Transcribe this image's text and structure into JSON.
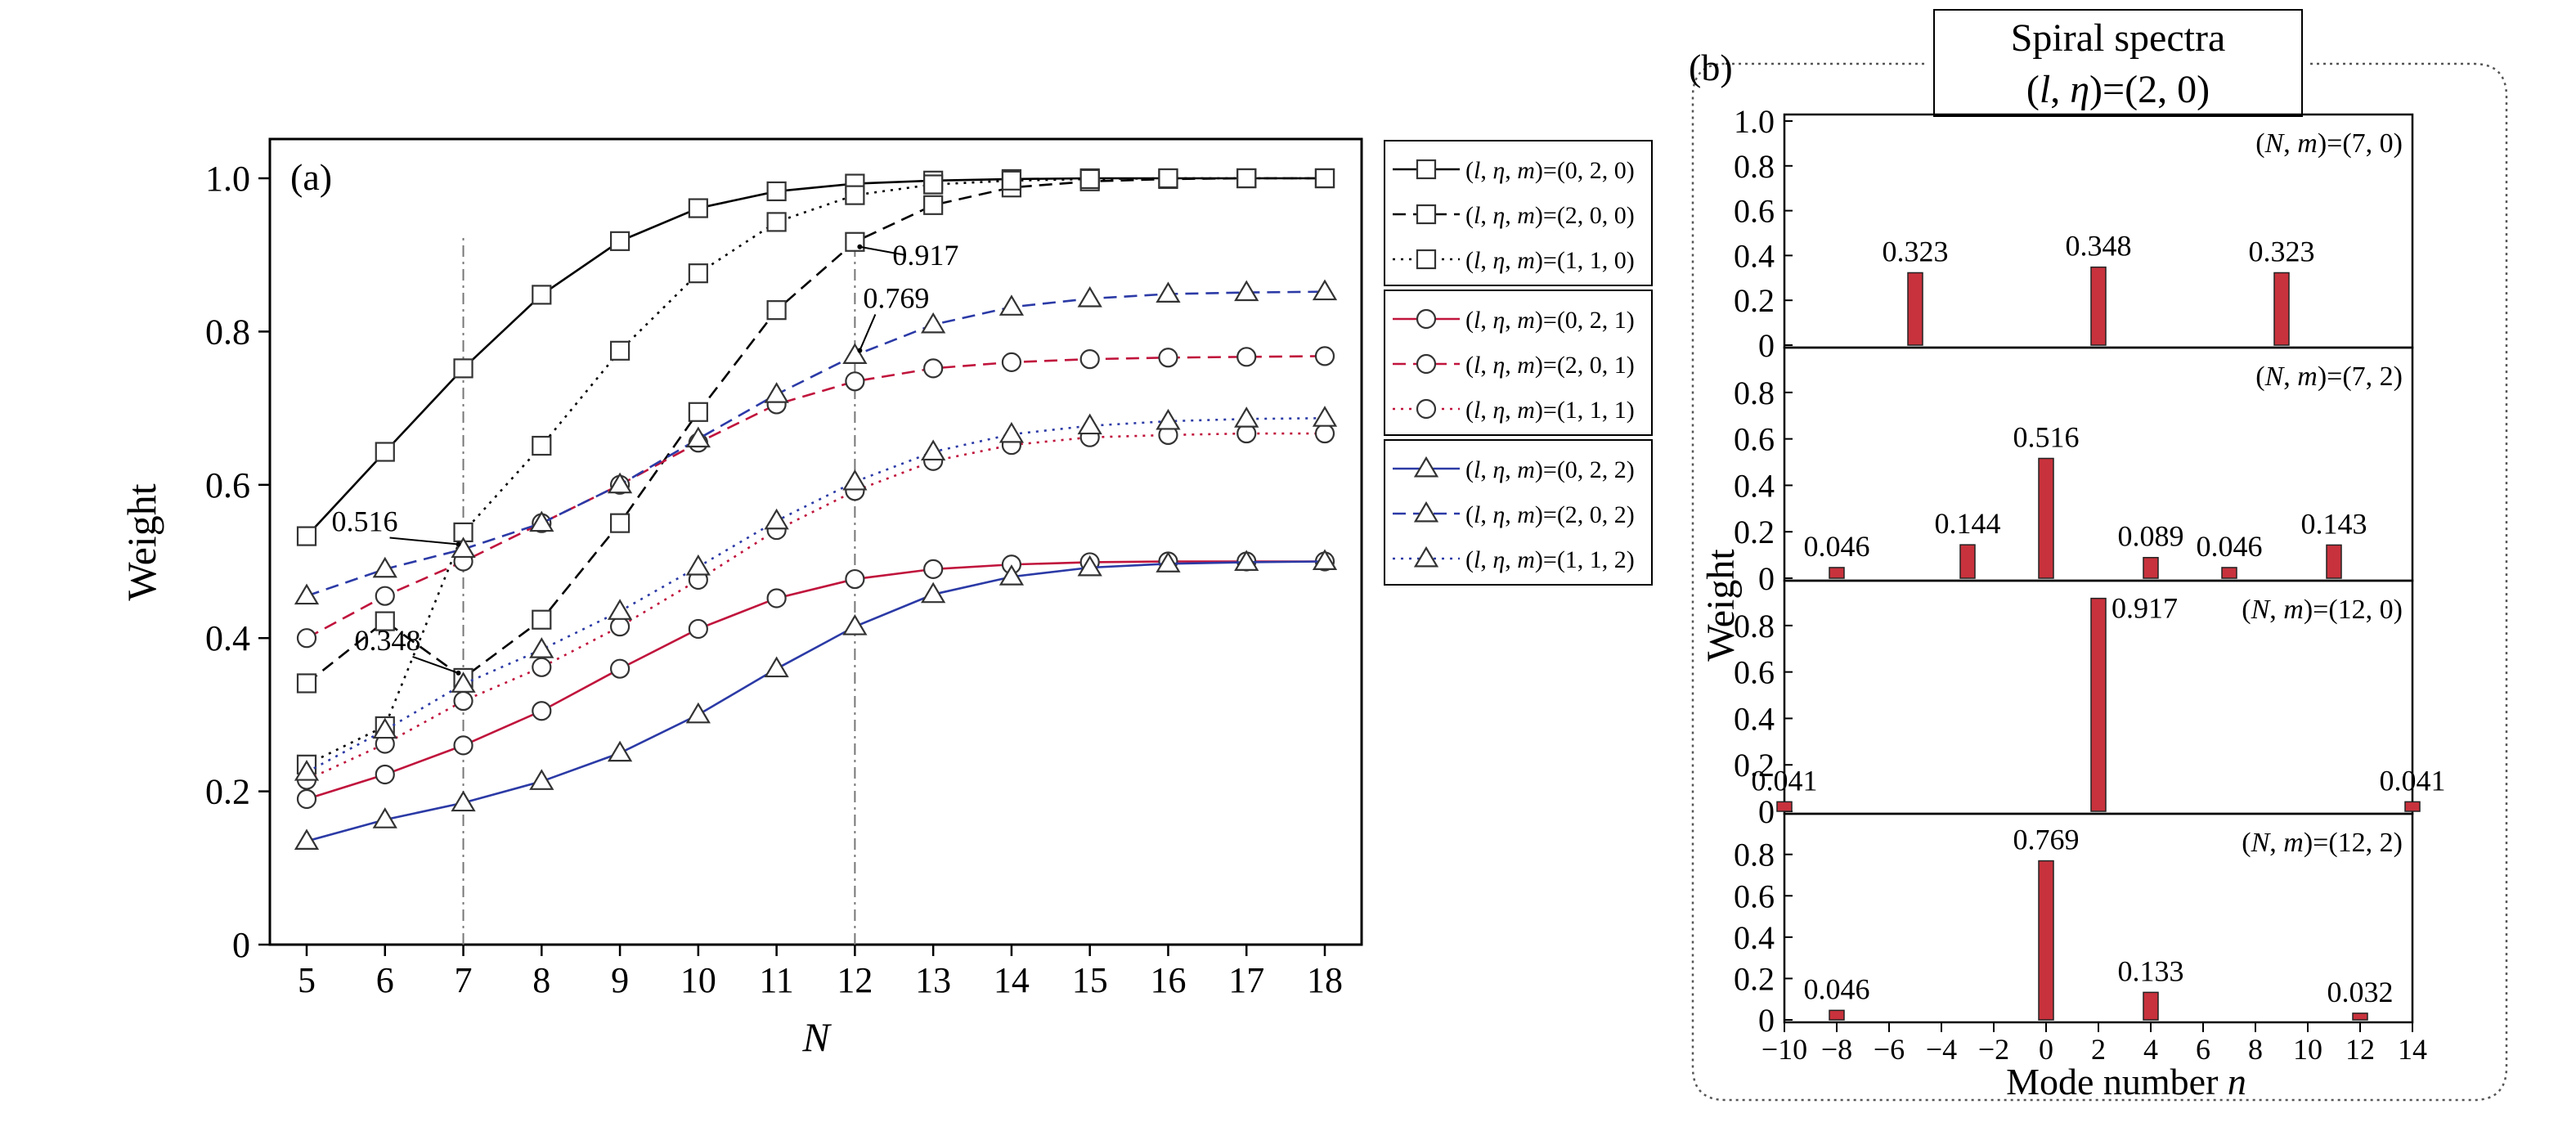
{
  "chart_data": [
    {
      "type": "line",
      "panel_label": "(a)",
      "xlabel": "N",
      "ylabel": "Weight",
      "xlim": [
        4.5,
        18.5
      ],
      "ylim": [
        0,
        1.05
      ],
      "x": [
        5,
        6,
        7,
        8,
        9,
        10,
        11,
        12,
        13,
        14,
        15,
        16,
        17,
        18
      ],
      "x_ticks": [
        "5",
        "6",
        "7",
        "8",
        "9",
        "10",
        "11",
        "12",
        "13",
        "14",
        "15",
        "16",
        "17",
        "18"
      ],
      "y_ticks": [
        {
          "v": 0,
          "label": "0"
        },
        {
          "v": 0.2,
          "label": "0.2"
        },
        {
          "v": 0.4,
          "label": "0.4"
        },
        {
          "v": 0.6,
          "label": "0.6"
        },
        {
          "v": 0.8,
          "label": "0.8"
        },
        {
          "v": 1.0,
          "label": "1.0"
        }
      ],
      "grid": false,
      "legend_position": "right",
      "series": [
        {
          "label_pre": "(",
          "label_l": "l",
          "label_eta": "η",
          "label_m": "m",
          "label_post": ")=(0, 2, 0)",
          "marker": "square",
          "dash": "solid",
          "color": "#000000",
          "values": [
            0.533,
            0.643,
            0.752,
            0.848,
            0.918,
            0.961,
            0.983,
            0.993,
            0.997,
            0.999,
            1.0,
            1.0,
            1.0,
            1.0
          ]
        },
        {
          "label_pre": "(",
          "label_l": "l",
          "label_eta": "η",
          "label_m": "m",
          "label_post": ")=(2, 0, 0)",
          "marker": "square",
          "dash": "dashed",
          "color": "#000000",
          "values": [
            0.341,
            0.422,
            0.348,
            0.424,
            0.55,
            0.695,
            0.828,
            0.917,
            0.965,
            0.988,
            0.996,
            0.999,
            1.0,
            1.0
          ]
        },
        {
          "label_pre": "(",
          "label_l": "l",
          "label_eta": "η",
          "label_m": "m",
          "label_post": ")=(1, 1, 0)",
          "marker": "square",
          "dash": "dotted",
          "color": "#000000",
          "values": [
            0.235,
            0.285,
            0.538,
            0.651,
            0.775,
            0.876,
            0.943,
            0.978,
            0.992,
            0.997,
            0.999,
            1.0,
            1.0,
            1.0
          ]
        },
        {
          "label_pre": "(",
          "label_l": "l",
          "label_eta": "η",
          "label_m": "m",
          "label_post": ")=(0, 2, 1)",
          "marker": "circle",
          "dash": "solid",
          "color": "#c0143c",
          "values": [
            0.19,
            0.222,
            0.26,
            0.305,
            0.36,
            0.412,
            0.452,
            0.477,
            0.49,
            0.496,
            0.499,
            0.5,
            0.5,
            0.5
          ]
        },
        {
          "label_pre": "(",
          "label_l": "l",
          "label_eta": "η",
          "label_m": "m",
          "label_post": ")=(2, 0, 1)",
          "marker": "circle",
          "dash": "dashed",
          "color": "#c0143c",
          "values": [
            0.4,
            0.455,
            0.5,
            0.55,
            0.6,
            0.655,
            0.705,
            0.735,
            0.752,
            0.76,
            0.764,
            0.766,
            0.767,
            0.768
          ]
        },
        {
          "label_pre": "(",
          "label_l": "l",
          "label_eta": "η",
          "label_m": "m",
          "label_post": ")=(1, 1, 1)",
          "marker": "circle",
          "dash": "dotted",
          "color": "#c0143c",
          "values": [
            0.215,
            0.262,
            0.318,
            0.362,
            0.415,
            0.476,
            0.541,
            0.592,
            0.631,
            0.652,
            0.662,
            0.665,
            0.667,
            0.667
          ]
        },
        {
          "label_pre": "(",
          "label_l": "l",
          "label_eta": "η",
          "label_m": "m",
          "label_post": ")=(0, 2, 2)",
          "marker": "triangle",
          "dash": "solid",
          "color": "#2b3aa6",
          "values": [
            0.135,
            0.163,
            0.185,
            0.213,
            0.25,
            0.3,
            0.36,
            0.415,
            0.457,
            0.48,
            0.492,
            0.497,
            0.499,
            0.5
          ]
        },
        {
          "label_pre": "(",
          "label_l": "l",
          "label_eta": "η",
          "label_m": "m",
          "label_post": ")=(2, 0, 2)",
          "marker": "triangle",
          "dash": "dashed",
          "color": "#2b3aa6",
          "values": [
            0.455,
            0.49,
            0.516,
            0.55,
            0.6,
            0.66,
            0.718,
            0.769,
            0.809,
            0.832,
            0.843,
            0.849,
            0.851,
            0.852
          ]
        },
        {
          "label_pre": "(",
          "label_l": "l",
          "label_eta": "η",
          "label_m": "m",
          "label_post": ")=(1, 1, 2)",
          "marker": "triangle",
          "dash": "dotted",
          "color": "#2b3aa6",
          "values": [
            0.225,
            0.28,
            0.34,
            0.385,
            0.435,
            0.493,
            0.553,
            0.604,
            0.643,
            0.666,
            0.677,
            0.683,
            0.686,
            0.687
          ]
        }
      ],
      "annotations": [
        {
          "text": "0.516",
          "x": 7,
          "y": 0.516
        },
        {
          "text": "0.348",
          "x": 7,
          "y": 0.348
        },
        {
          "text": "0.917",
          "x": 12,
          "y": 0.917
        },
        {
          "text": "0.769",
          "x": 12,
          "y": 0.769
        }
      ],
      "reference_lines_x": [
        7,
        12
      ]
    },
    {
      "type": "bar",
      "panel_label": "(b)",
      "title_line1": "Spiral spectra",
      "title_line2_pre": "(",
      "title_line2_l": "l",
      "title_line2_eta": "η",
      "title_line2_post": ")=(2, 0)",
      "xlabel_pre": "Mode number ",
      "xlabel_var": "n",
      "ylabel": "Weight",
      "xlim": [
        -10,
        14
      ],
      "ylim": [
        0,
        1.0
      ],
      "bar_color": "#c8323c",
      "x_ticks": [
        "−10",
        "−8",
        "−6",
        "−4",
        "−2",
        "0",
        "2",
        "4",
        "6",
        "8",
        "10",
        "12",
        "14"
      ],
      "y_ticks_top": [
        {
          "v": 0,
          "label": "0"
        },
        {
          "v": 0.2,
          "label": "0.2"
        },
        {
          "v": 0.4,
          "label": "0.4"
        },
        {
          "v": 0.6,
          "label": "0.6"
        },
        {
          "v": 0.8,
          "label": "0.8"
        },
        {
          "v": 1.0,
          "label": "1.0"
        }
      ],
      "y_ticks_other": [
        {
          "v": 0,
          "label": "0"
        },
        {
          "v": 0.2,
          "label": "0.2"
        },
        {
          "v": 0.4,
          "label": "0.4"
        },
        {
          "v": 0.6,
          "label": "0.6"
        },
        {
          "v": 0.8,
          "label": "0.8"
        }
      ],
      "subplots": [
        {
          "label_pre": "(",
          "label_N": "N",
          "label_m": "m",
          "label_post": ")=(7, 0)",
          "bars": [
            {
              "n": -5,
              "v": 0.323,
              "text": "0.323"
            },
            {
              "n": 2,
              "v": 0.348,
              "text": "0.348"
            },
            {
              "n": 9,
              "v": 0.323,
              "text": "0.323"
            }
          ]
        },
        {
          "label_pre": "(",
          "label_N": "N",
          "label_m": "m",
          "label_post": ")=(7, 2)",
          "bars": [
            {
              "n": -8,
              "v": 0.046,
              "text": "0.046"
            },
            {
              "n": -3,
              "v": 0.144,
              "text": "0.144"
            },
            {
              "n": 0,
              "v": 0.516,
              "text": "0.516"
            },
            {
              "n": 4,
              "v": 0.089,
              "text": "0.089"
            },
            {
              "n": 7,
              "v": 0.046,
              "text": "0.046"
            },
            {
              "n": 11,
              "v": 0.143,
              "text": "0.143"
            }
          ]
        },
        {
          "label_pre": "(",
          "label_N": "N",
          "label_m": "m",
          "label_post": ")=(12, 0)",
          "bars": [
            {
              "n": -10,
              "v": 0.041,
              "text": "0.041"
            },
            {
              "n": 2,
              "v": 0.917,
              "text": "0.917"
            },
            {
              "n": 14,
              "v": 0.041,
              "text": "0.041"
            }
          ]
        },
        {
          "label_pre": "(",
          "label_N": "N",
          "label_m": "m",
          "label_post": ")=(12, 2)",
          "bars": [
            {
              "n": -8,
              "v": 0.046,
              "text": "0.046"
            },
            {
              "n": 0,
              "v": 0.769,
              "text": "0.769"
            },
            {
              "n": 4,
              "v": 0.133,
              "text": "0.133"
            },
            {
              "n": 12,
              "v": 0.032,
              "text": "0.032"
            }
          ]
        }
      ]
    }
  ]
}
